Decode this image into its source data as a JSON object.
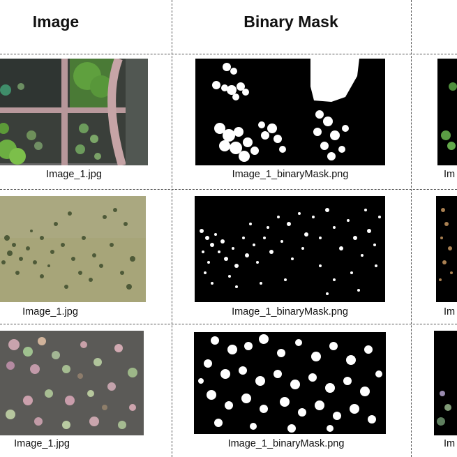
{
  "headers": {
    "col1": "Image",
    "col2": "Binary Mask"
  },
  "rows": [
    {
      "image_caption": "Image_1.jpg",
      "mask_caption": "Image_1_binaryMask.png",
      "third_caption": "Im"
    },
    {
      "image_caption": "Image_1.jpg",
      "mask_caption": "Image_1_binaryMask.png",
      "third_caption": "Im"
    },
    {
      "image_caption": "Image_1.jpg",
      "mask_caption": "Image_1_binaryMask.png",
      "third_caption": "Im"
    }
  ]
}
